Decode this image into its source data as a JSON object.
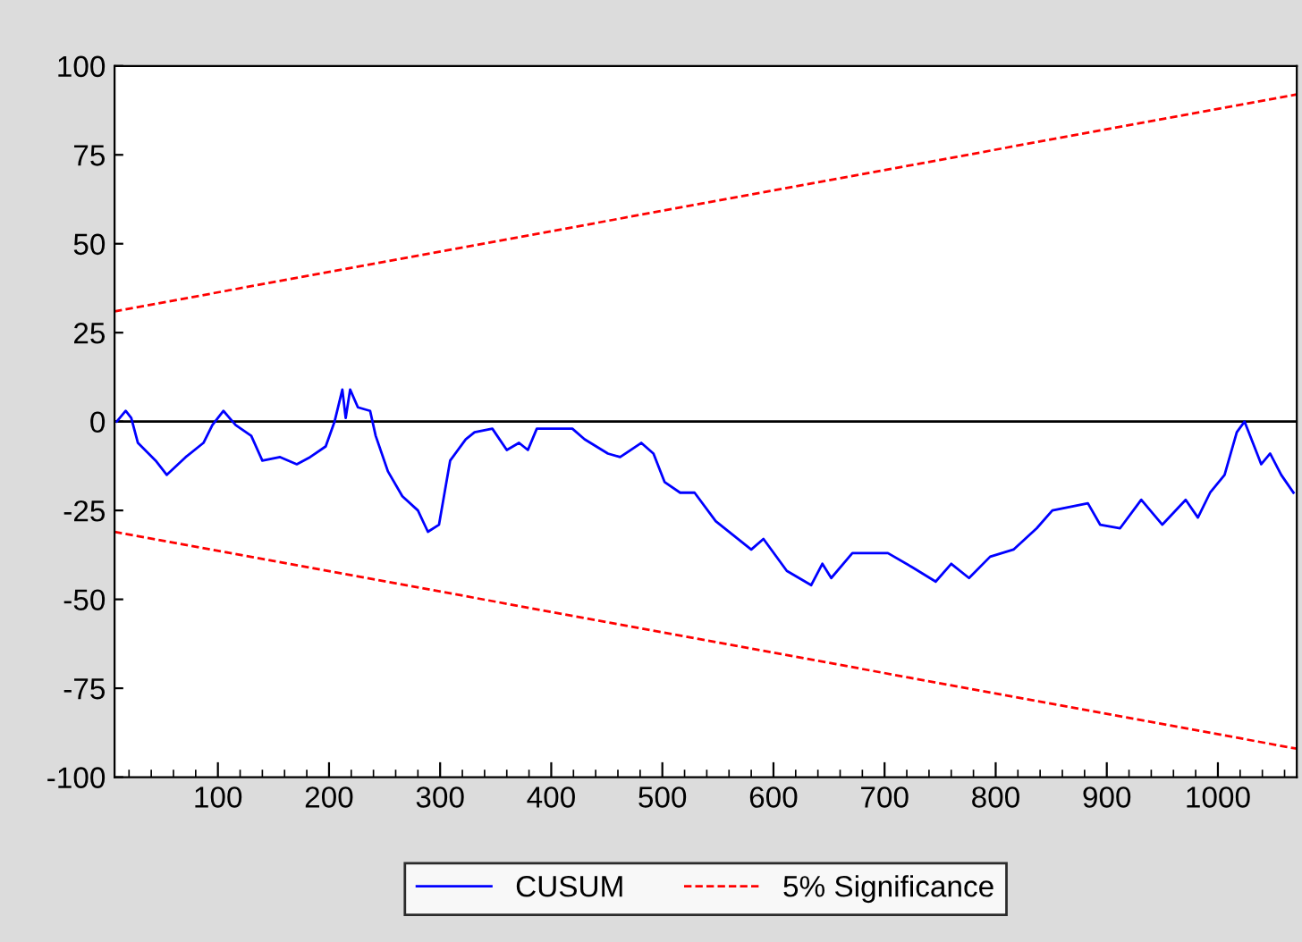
{
  "chart_data": {
    "type": "line",
    "xlim": [
      7,
      1071
    ],
    "ylim": [
      -100,
      100
    ],
    "xticks": [
      100,
      200,
      300,
      400,
      500,
      600,
      700,
      800,
      900,
      1000
    ],
    "yticks": [
      -100,
      -75,
      -50,
      -25,
      0,
      25,
      50,
      75,
      100
    ],
    "grid": false,
    "legend": "bottom",
    "marker": "none",
    "ref_lines": [
      {
        "axis": "y",
        "value": 0,
        "color": "#000000",
        "line_style": "solid"
      }
    ],
    "series": [
      {
        "name": "CUSUM",
        "color": "#0000ff",
        "line_style": "solid",
        "x": [
          9,
          17,
          22,
          28,
          44,
          54,
          71,
          87,
          95,
          105,
          116,
          130,
          140,
          156,
          171,
          183,
          197,
          205,
          212,
          215,
          219,
          226,
          237,
          242,
          253,
          266,
          280,
          289,
          299,
          304,
          309,
          323,
          331,
          347,
          360,
          371,
          379,
          387,
          408,
          419,
          430,
          451,
          462,
          481,
          492,
          502,
          516,
          529,
          548,
          580,
          591,
          612,
          634,
          644,
          652,
          671,
          703,
          725,
          746,
          760,
          776,
          795,
          816,
          837,
          851,
          883,
          894,
          912,
          931,
          950,
          971,
          982,
          993,
          1006,
          1017,
          1024,
          1039,
          1047,
          1057,
          1068
        ],
        "values": [
          0,
          3,
          1,
          -6,
          -11,
          -15,
          -10,
          -6,
          -1,
          3,
          -1,
          -4,
          -11,
          -10,
          -12,
          -10,
          -7,
          0,
          9,
          1,
          9,
          4,
          3,
          -4,
          -14,
          -21,
          -25,
          -31,
          -29,
          -20,
          -11,
          -5,
          -3,
          -2,
          -8,
          -6,
          -8,
          -2,
          -2,
          -2,
          -5,
          -9,
          -10,
          -6,
          -9,
          -17,
          -20,
          -20,
          -28,
          -36,
          -33,
          -42,
          -46,
          -40,
          -44,
          -37,
          -37,
          -41,
          -45,
          -40,
          -44,
          -38,
          -36,
          -30,
          -25,
          -23,
          -29,
          -30,
          -22,
          -29,
          -22,
          -27,
          -20,
          -15,
          -3,
          0,
          -12,
          -9,
          -15,
          -20
        ]
      },
      {
        "name": "5% Significance",
        "color": "#ff0000",
        "line_style": "dashed",
        "x": [
          7,
          1071
        ],
        "values": [
          31,
          92
        ]
      },
      {
        "color": "#ff0000",
        "line_style": "dashed",
        "x": [
          7,
          1071
        ],
        "values": [
          -31,
          -92
        ]
      }
    ]
  }
}
